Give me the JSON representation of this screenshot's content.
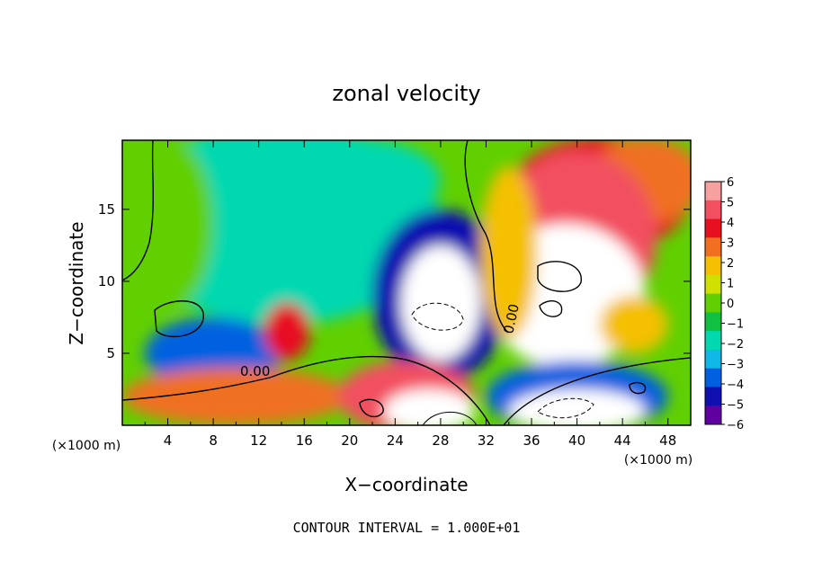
{
  "chart_data": {
    "type": "heatmap",
    "title": "zonal velocity",
    "xlabel": "X−coordinate",
    "ylabel": "Z−coordinate",
    "x_unit_left": "(×1000 m)",
    "x_unit_right": "(×1000 m)",
    "xlim": [
      0,
      50
    ],
    "ylim": [
      0,
      19.8
    ],
    "x_ticks": [
      "4",
      "8",
      "12",
      "16",
      "20",
      "24",
      "28",
      "32",
      "36",
      "40",
      "44",
      "48"
    ],
    "y_ticks": [
      "5",
      "10",
      "15"
    ],
    "footer": "CONTOUR INTERVAL = 1.000E+01",
    "contour_labels": [
      "0.00",
      "0.00"
    ],
    "colorbar": {
      "ticks": [
        "6",
        "5",
        "4",
        "3",
        "2",
        "1",
        "0",
        "−1",
        "−2",
        "−3",
        "−4",
        "−5",
        "−6"
      ],
      "colors": [
        "#f7a0a0",
        "#f25060",
        "#e81020",
        "#f07020",
        "#f4c000",
        "#d0e000",
        "#60d000",
        "#10c040",
        "#00d8b0",
        "#10b8e8",
        "#0060e0",
        "#1010b0",
        "#6000a0"
      ]
    },
    "regions": [
      {
        "x": 14,
        "y": 14,
        "rx": 14,
        "ry": 7,
        "v": -1.5
      },
      {
        "x": 20,
        "y": 17,
        "rx": 8,
        "ry": 3,
        "v": -2
      },
      {
        "x": 4,
        "y": 14,
        "rx": 4,
        "ry": 6,
        "v": 0.5
      },
      {
        "x": 42,
        "y": 16,
        "rx": 8,
        "ry": 4,
        "v": 4
      },
      {
        "x": 46,
        "y": 17,
        "rx": 5,
        "ry": 3,
        "v": 3
      },
      {
        "x": 40,
        "y": 13,
        "rx": 7,
        "ry": 6,
        "v": 5
      },
      {
        "x": 39,
        "y": 9,
        "rx": 7,
        "ry": 5,
        "v": 6
      },
      {
        "x": 28,
        "y": 9,
        "rx": 6,
        "ry": 6,
        "v": -5
      },
      {
        "x": 28,
        "y": 8.5,
        "rx": 3.5,
        "ry": 4,
        "v": -6
      },
      {
        "x": 8,
        "y": 5,
        "rx": 6,
        "ry": 2.5,
        "v": -3.5
      },
      {
        "x": 14.5,
        "y": 6.5,
        "rx": 2,
        "ry": 2,
        "v": 4.5
      },
      {
        "x": 10,
        "y": 2,
        "rx": 10,
        "ry": 2,
        "v": 3
      },
      {
        "x": 25,
        "y": 2,
        "rx": 6,
        "ry": 2.5,
        "v": 5
      },
      {
        "x": 27,
        "y": 1,
        "rx": 4,
        "ry": 1.5,
        "v": 6
      },
      {
        "x": 40,
        "y": 2,
        "rx": 8,
        "ry": 2.5,
        "v": -4
      },
      {
        "x": 40,
        "y": 1,
        "rx": 6,
        "ry": 1.5,
        "v": -6
      },
      {
        "x": 45,
        "y": 7,
        "rx": 3,
        "ry": 2,
        "v": 2.5
      },
      {
        "x": 34,
        "y": 12,
        "rx": 2.5,
        "ry": 6,
        "v": 2
      }
    ]
  }
}
